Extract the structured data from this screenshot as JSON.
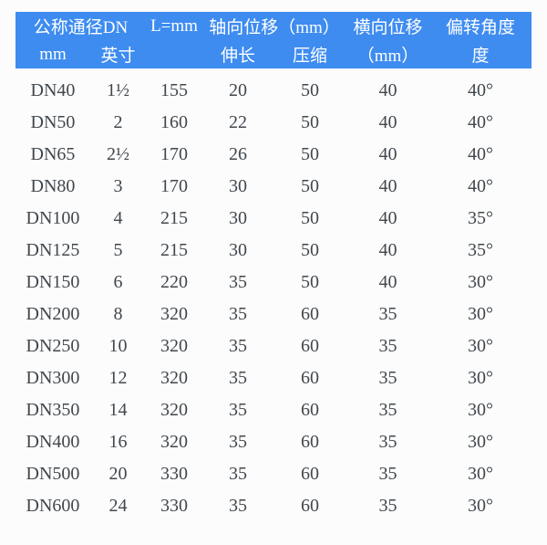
{
  "colors": {
    "page_bg": "#fcfcfc",
    "header_bg": "#3e8cf0",
    "header_text": "#ffffff",
    "body_text": "#40474d"
  },
  "chart_data": {
    "type": "table",
    "title": "",
    "header_rows": [
      [
        {
          "text": "公称通径DN",
          "colspan": 2
        },
        {
          "text": "L=mm",
          "colspan": 1
        },
        {
          "text": "轴向位移（mm）",
          "colspan": 2
        },
        {
          "text": "横向位移",
          "colspan": 1
        },
        {
          "text": "偏转角度",
          "colspan": 1
        }
      ],
      [
        {
          "text": "mm",
          "colspan": 1
        },
        {
          "text": "英寸",
          "colspan": 1
        },
        {
          "text": "",
          "colspan": 1
        },
        {
          "text": "伸长",
          "colspan": 1
        },
        {
          "text": "压缩",
          "colspan": 1
        },
        {
          "text": "（mm）",
          "colspan": 1
        },
        {
          "text": "度",
          "colspan": 1
        }
      ]
    ],
    "columns_flat": [
      "公称通径DN mm",
      "公称通径DN 英寸",
      "L=mm",
      "轴向位移伸长（mm）",
      "轴向位移压缩（mm）",
      "横向位移（mm）",
      "偏转角度 度"
    ],
    "rows": [
      [
        "DN40",
        "1½",
        155,
        20,
        50,
        40,
        "40°"
      ],
      [
        "DN50",
        "2",
        160,
        22,
        50,
        40,
        "40°"
      ],
      [
        "DN65",
        "2½",
        170,
        26,
        50,
        40,
        "40°"
      ],
      [
        "DN80",
        "3",
        170,
        30,
        50,
        40,
        "40°"
      ],
      [
        "DN100",
        "4",
        215,
        30,
        50,
        40,
        "35°"
      ],
      [
        "DN125",
        "5",
        215,
        30,
        50,
        40,
        "35°"
      ],
      [
        "DN150",
        "6",
        220,
        35,
        50,
        40,
        "30°"
      ],
      [
        "DN200",
        "8",
        320,
        35,
        60,
        35,
        "30°"
      ],
      [
        "DN250",
        "10",
        320,
        35,
        60,
        35,
        "30°"
      ],
      [
        "DN300",
        "12",
        320,
        35,
        60,
        35,
        "30°"
      ],
      [
        "DN350",
        "14",
        320,
        35,
        60,
        35,
        "30°"
      ],
      [
        "DN400",
        "16",
        320,
        35,
        60,
        35,
        "30°"
      ],
      [
        "DN500",
        "20",
        330,
        35,
        60,
        35,
        "30°"
      ],
      [
        "DN600",
        "24",
        330,
        35,
        60,
        35,
        "30°"
      ]
    ]
  }
}
